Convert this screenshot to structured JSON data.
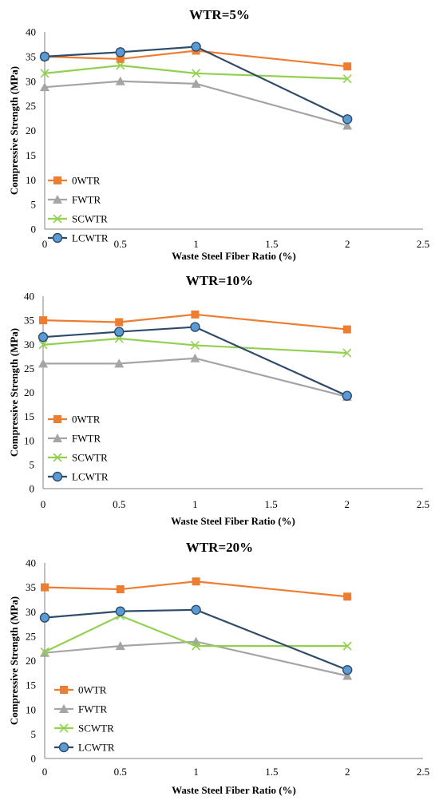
{
  "chart_data": [
    {
      "type": "line",
      "title": "WTR=5%",
      "xlabel": "Waste Steel Fiber Ratio (%)",
      "ylabel": "Compressive Strength (MPa)",
      "xlim": [
        0,
        2.5
      ],
      "ylim": [
        0,
        40
      ],
      "xticks": [
        0,
        0.5,
        1,
        1.5,
        2,
        2.5
      ],
      "yticks": [
        0,
        5,
        10,
        15,
        20,
        25,
        30,
        35,
        40
      ],
      "x": [
        0,
        0.5,
        1,
        2
      ],
      "legend": "left",
      "grid": false,
      "series": [
        {
          "name": "0WTR",
          "color": "#ED7D31",
          "marker": "square",
          "values": [
            35.0,
            34.5,
            36.2,
            33.0
          ]
        },
        {
          "name": "FWTR",
          "color": "#A5A5A5",
          "marker": "triangle",
          "values": [
            28.8,
            30.0,
            29.5,
            21.0
          ]
        },
        {
          "name": "SCWTR",
          "color": "#92D050",
          "marker": "x",
          "values": [
            31.6,
            33.2,
            31.6,
            30.5
          ]
        },
        {
          "name": "LCWTR",
          "color": "#2F4B6A",
          "marker": "circle",
          "values": [
            35.0,
            35.9,
            37.0,
            22.3
          ]
        }
      ]
    },
    {
      "type": "line",
      "title": "WTR=10%",
      "xlabel": "Waste Steel Fiber Ratio (%)",
      "ylabel": "Compressive Strength (MPa)",
      "xlim": [
        0,
        2.5
      ],
      "ylim": [
        0,
        40
      ],
      "xticks": [
        0,
        0.5,
        1,
        1.5,
        2,
        2.5
      ],
      "yticks": [
        0,
        5,
        10,
        15,
        20,
        25,
        30,
        35,
        40
      ],
      "x": [
        0,
        0.5,
        1,
        2
      ],
      "legend": "left",
      "grid": false,
      "series": [
        {
          "name": "0WTR",
          "color": "#ED7D31",
          "marker": "square",
          "values": [
            35.0,
            34.6,
            36.2,
            33.1
          ]
        },
        {
          "name": "FWTR",
          "color": "#A5A5A5",
          "marker": "triangle",
          "values": [
            26.0,
            26.0,
            27.1,
            19.1
          ]
        },
        {
          "name": "SCWTR",
          "color": "#92D050",
          "marker": "x",
          "values": [
            29.9,
            31.2,
            29.8,
            28.2
          ]
        },
        {
          "name": "LCWTR",
          "color": "#2F4B6A",
          "marker": "circle",
          "values": [
            31.5,
            32.6,
            33.6,
            19.3
          ]
        }
      ]
    },
    {
      "type": "line",
      "title": "WTR=20%",
      "xlabel": "Waste Steel Fiber Ratio (%)",
      "ylabel": "Compressive Strength (MPa)",
      "xlim": [
        0,
        2.5
      ],
      "ylim": [
        0,
        40
      ],
      "xticks": [
        0,
        0.5,
        1,
        1.5,
        2,
        2.5
      ],
      "yticks": [
        0,
        5,
        10,
        15,
        20,
        25,
        30,
        35,
        40
      ],
      "x": [
        0,
        0.5,
        1,
        2
      ],
      "legend": "left",
      "grid": false,
      "series": [
        {
          "name": "0WTR",
          "color": "#ED7D31",
          "marker": "square",
          "values": [
            35.0,
            34.6,
            36.2,
            33.1
          ]
        },
        {
          "name": "FWTR",
          "color": "#A5A5A5",
          "marker": "triangle",
          "values": [
            21.6,
            23.0,
            23.9,
            16.9
          ]
        },
        {
          "name": "SCWTR",
          "color": "#92D050",
          "marker": "x",
          "values": [
            21.8,
            29.2,
            23.0,
            23.0
          ]
        },
        {
          "name": "LCWTR",
          "color": "#2F4B6A",
          "marker": "circle",
          "values": [
            28.8,
            30.1,
            30.4,
            18.1
          ]
        }
      ]
    }
  ]
}
